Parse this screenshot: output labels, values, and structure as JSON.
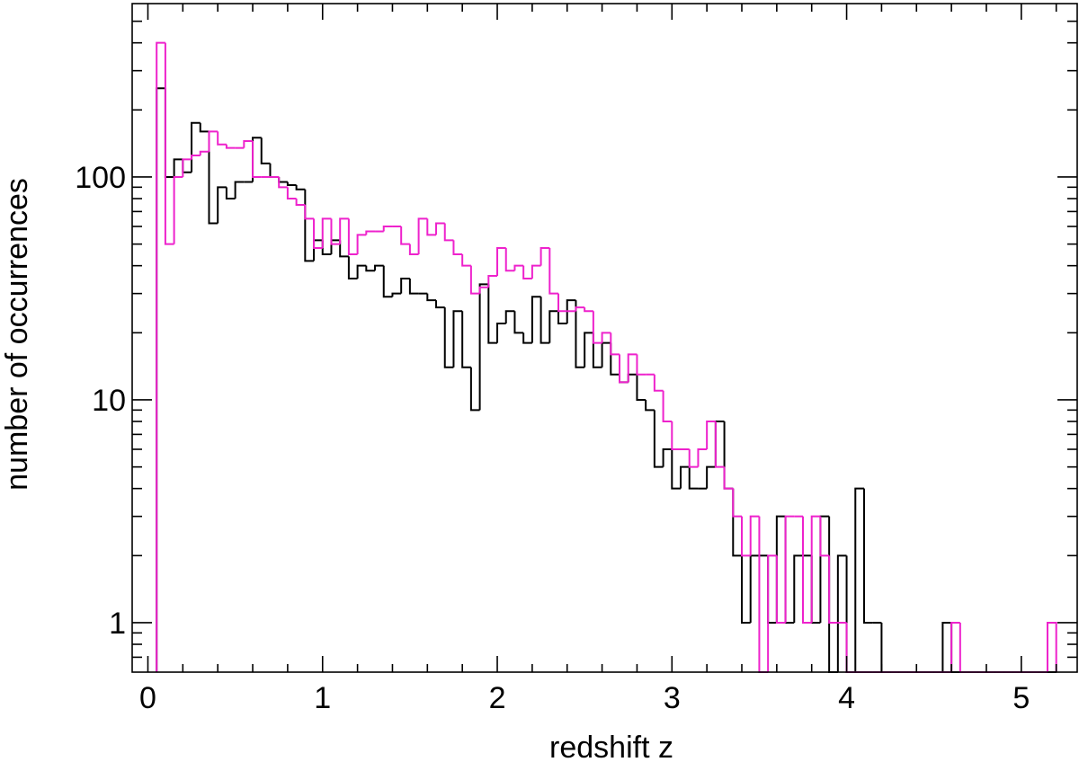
{
  "chart_data": {
    "type": "histogram",
    "xlabel": "redshift z",
    "ylabel": "number of occurrences",
    "bins": [
      0.05,
      0.1,
      0.15,
      0.2,
      0.25,
      0.3,
      0.35,
      0.4,
      0.45,
      0.5,
      0.55,
      0.6,
      0.65,
      0.7,
      0.75,
      0.8,
      0.85,
      0.9,
      0.95,
      1.0,
      1.05,
      1.1,
      1.15,
      1.2,
      1.25,
      1.3,
      1.35,
      1.4,
      1.45,
      1.5,
      1.55,
      1.6,
      1.65,
      1.7,
      1.75,
      1.8,
      1.85,
      1.9,
      1.95,
      2.0,
      2.05,
      2.1,
      2.15,
      2.2,
      2.25,
      2.3,
      2.35,
      2.4,
      2.45,
      2.5,
      2.55,
      2.6,
      2.65,
      2.7,
      2.75,
      2.8,
      2.85,
      2.9,
      2.95,
      3.0,
      3.05,
      3.1,
      3.15,
      3.2,
      3.25,
      3.3,
      3.35,
      3.4,
      3.45,
      3.5,
      3.55,
      3.6,
      3.65,
      3.7,
      3.75,
      3.8,
      3.85,
      3.9,
      3.95,
      4.0,
      4.05,
      4.1,
      4.15,
      4.2,
      4.25,
      4.3,
      4.35,
      4.4,
      4.45,
      4.5,
      4.55,
      4.6,
      4.65,
      4.7,
      4.75,
      4.8,
      4.85,
      4.9,
      4.95,
      5.0,
      5.05,
      5.1,
      5.15,
      5.2
    ],
    "series": [
      {
        "color": "#000000",
        "values": [
          250,
          100,
          120,
          105,
          175,
          160,
          62,
          90,
          80,
          95,
          95,
          150,
          115,
          100,
          95,
          92,
          88,
          42,
          52,
          45,
          52,
          44,
          35,
          40,
          38,
          40,
          29,
          30,
          35,
          30,
          30,
          28,
          26,
          14,
          25,
          14,
          9,
          33,
          18,
          22,
          25,
          20,
          18,
          29,
          18,
          25,
          22,
          28,
          14,
          20,
          14,
          18,
          13,
          12,
          13,
          10,
          9,
          5,
          6,
          4,
          5,
          4,
          4,
          5,
          8,
          4,
          2,
          1,
          2,
          2,
          1,
          3,
          1,
          2,
          2,
          1,
          3,
          0,
          2,
          0,
          4,
          1,
          1,
          0,
          0,
          0,
          0,
          0,
          0,
          0,
          1,
          0,
          0,
          0,
          0,
          0,
          0,
          0,
          0,
          0,
          0,
          0,
          0
        ]
      },
      {
        "color": "#ee22cc",
        "values": [
          400,
          50,
          100,
          120,
          125,
          130,
          160,
          140,
          135,
          135,
          145,
          100,
          100,
          100,
          90,
          80,
          75,
          65,
          48,
          65,
          50,
          65,
          45,
          55,
          57,
          57,
          60,
          60,
          50,
          45,
          65,
          55,
          62,
          52,
          45,
          40,
          30,
          32,
          36,
          48,
          38,
          40,
          35,
          40,
          48,
          30,
          25,
          25,
          26,
          25,
          18,
          20,
          16,
          12,
          16,
          13,
          13,
          11,
          8,
          6,
          6,
          5,
          6,
          8,
          5,
          4,
          3,
          2,
          3,
          0,
          2,
          1,
          3,
          3,
          1,
          3,
          2,
          1,
          1,
          0,
          0,
          0,
          0,
          0,
          0,
          0,
          0,
          0,
          0,
          0,
          0,
          1,
          0,
          0,
          0,
          0,
          0,
          0,
          0,
          0,
          0,
          0,
          1
        ]
      }
    ],
    "xlim": [
      -0.09,
      5.32
    ],
    "xticks": [
      0,
      1,
      2,
      3,
      4,
      5
    ],
    "xticks_minor": [
      0.2,
      0.4,
      0.6,
      0.8,
      1.2,
      1.4,
      1.6,
      1.8,
      2.2,
      2.4,
      2.6,
      2.8,
      3.2,
      3.4,
      3.6,
      3.8,
      4.2,
      4.4,
      4.6,
      4.8,
      5.2
    ],
    "ylim": [
      0.6,
      600
    ],
    "yscale": "log",
    "yticks": [
      1,
      10,
      100
    ],
    "yticks_minor": [
      0.7,
      0.8,
      0.9,
      2,
      3,
      4,
      5,
      6,
      7,
      8,
      9,
      20,
      30,
      40,
      50,
      60,
      70,
      80,
      90,
      200,
      300,
      400,
      500
    ]
  }
}
